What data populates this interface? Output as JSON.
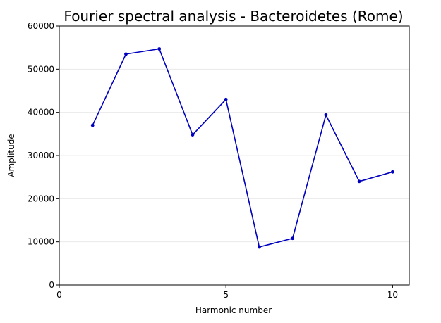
{
  "chart_data": {
    "type": "line",
    "title": "Fourier spectral analysis - Bacteroidetes (Rome)",
    "xlabel": "Harmonic number",
    "ylabel": "Amplitude",
    "xlim": [
      0,
      10.5
    ],
    "ylim": [
      0,
      60000
    ],
    "xticks": [
      0,
      5,
      10
    ],
    "yticks": [
      0,
      10000,
      20000,
      30000,
      40000,
      50000,
      60000
    ],
    "grid": "horizontal",
    "legend": "none",
    "series": [
      {
        "color": "#0000bf",
        "x": [
          1,
          2,
          3,
          4,
          5,
          6,
          7,
          8,
          9,
          10
        ],
        "y": [
          37000,
          53500,
          54700,
          34800,
          43000,
          8800,
          10800,
          39400,
          24000,
          26200
        ]
      }
    ]
  }
}
